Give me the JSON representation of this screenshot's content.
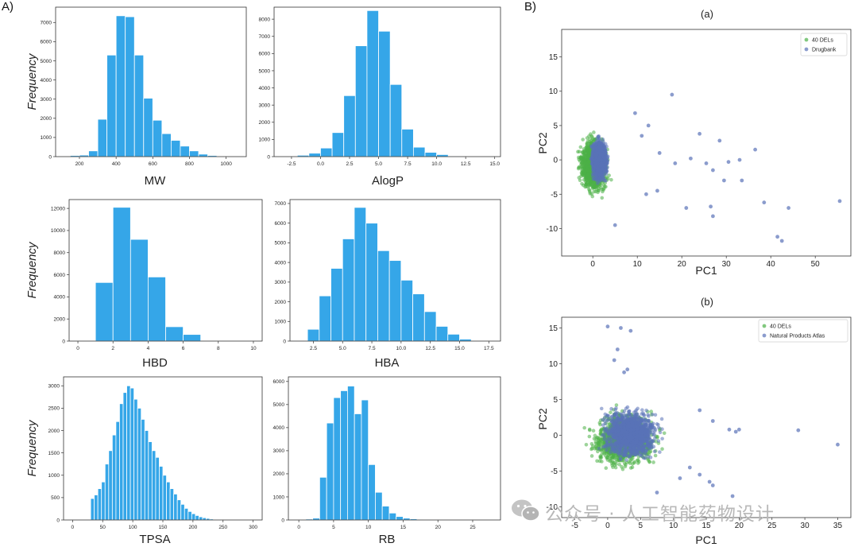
{
  "labels": {
    "panel_a": "A)",
    "panel_b": "B)"
  },
  "watermark": {
    "text": "公众号 · 人工智能药物设计"
  },
  "colors": {
    "bar": "#35a6e8",
    "bar_edge": "#ffffff",
    "frame": "#333333",
    "del_green": "#4cb047",
    "db_blue": "#5a72b8"
  },
  "chart_data": [
    {
      "type": "bar",
      "panel": "A",
      "ylabel": "Frequency",
      "xlabel": "MW",
      "xlim": [
        70,
        1110
      ],
      "ylim": [
        0,
        7800
      ],
      "xticks": [
        200,
        400,
        600,
        800,
        1000
      ],
      "yticks": [
        0,
        1000,
        2000,
        3000,
        4000,
        5000,
        6000,
        7000
      ],
      "bin_edges": [
        100,
        150,
        200,
        250,
        300,
        350,
        400,
        450,
        500,
        550,
        600,
        650,
        700,
        750,
        800,
        850,
        900,
        950,
        1000,
        1050
      ],
      "values": [
        30,
        60,
        80,
        300,
        1950,
        5300,
        7350,
        7300,
        5300,
        3050,
        1900,
        1200,
        850,
        550,
        300,
        130,
        60,
        30,
        15
      ]
    },
    {
      "type": "bar",
      "panel": "A",
      "ylabel": "",
      "xlabel": "AlogP",
      "xlim": [
        -4,
        15.5
      ],
      "ylim": [
        0,
        8700
      ],
      "xticks": [
        -2.5,
        0.0,
        2.5,
        5.0,
        7.5,
        10.0,
        12.5,
        15.0
      ],
      "yticks": [
        0,
        1000,
        2000,
        3000,
        4000,
        5000,
        6000,
        7000,
        8000
      ],
      "bin_edges": [
        -3,
        -2,
        -1,
        0,
        1,
        2,
        3,
        4,
        5,
        6,
        7,
        8,
        9,
        10,
        11,
        12
      ],
      "values": [
        20,
        80,
        200,
        500,
        1400,
        3550,
        6450,
        8500,
        7300,
        4200,
        1600,
        550,
        250,
        120,
        40
      ]
    },
    {
      "type": "bar",
      "panel": "A",
      "ylabel": "Frequency",
      "xlabel": "HBD",
      "xlim": [
        -0.5,
        10.5
      ],
      "ylim": [
        0,
        12800
      ],
      "xticks": [
        0,
        2,
        4,
        6,
        8,
        10
      ],
      "yticks": [
        0,
        2000,
        4000,
        6000,
        8000,
        10000,
        12000
      ],
      "bin_edges": [
        1,
        2,
        3,
        4,
        5,
        6,
        7
      ],
      "values": [
        5300,
        12100,
        9200,
        5800,
        1300,
        600
      ]
    },
    {
      "type": "bar",
      "panel": "A",
      "ylabel": "",
      "xlabel": "HBA",
      "xlim": [
        0.5,
        18.5
      ],
      "ylim": [
        0,
        7200
      ],
      "xticks": [
        2.5,
        5.0,
        7.5,
        10.0,
        12.5,
        15.0,
        17.5
      ],
      "yticks": [
        0,
        1000,
        2000,
        3000,
        4000,
        5000,
        6000,
        7000
      ],
      "bin_edges": [
        2,
        3,
        4,
        5,
        6,
        7,
        8,
        9,
        10,
        11,
        12,
        13,
        14,
        15,
        16
      ],
      "values": [
        600,
        2300,
        3700,
        5200,
        6800,
        6000,
        4600,
        4100,
        3100,
        2400,
        1500,
        750,
        350,
        100
      ]
    },
    {
      "type": "bar",
      "panel": "A",
      "ylabel": "Frequency",
      "xlabel": "TPSA",
      "xlim": [
        -15,
        315
      ],
      "ylim": [
        0,
        3200
      ],
      "xticks": [
        0,
        50,
        100,
        150,
        200,
        250,
        300
      ],
      "yticks": [
        0,
        500,
        1000,
        1500,
        2000,
        2500,
        3000
      ],
      "bin_edges": [
        30,
        36,
        42,
        48,
        54,
        60,
        66,
        72,
        78,
        84,
        90,
        96,
        102,
        108,
        114,
        120,
        126,
        132,
        138,
        144,
        150,
        156,
        162,
        168,
        174,
        180,
        186,
        192,
        198,
        204,
        210,
        216,
        222,
        228,
        234,
        240,
        246,
        252
      ],
      "values": [
        480,
        560,
        700,
        850,
        1250,
        1550,
        1900,
        2200,
        2600,
        2850,
        3000,
        2950,
        2700,
        2500,
        2250,
        2000,
        1750,
        1550,
        1400,
        1200,
        1000,
        850,
        700,
        580,
        450,
        350,
        260,
        190,
        140,
        100,
        70,
        50,
        35,
        22,
        15,
        10,
        5
      ]
    },
    {
      "type": "bar",
      "panel": "A",
      "ylabel": "",
      "xlabel": "RB",
      "xlim": [
        -1.5,
        29
      ],
      "ylim": [
        0,
        6200
      ],
      "xticks": [
        0,
        5,
        10,
        15,
        20,
        25
      ],
      "yticks": [
        0,
        1000,
        2000,
        3000,
        4000,
        5000,
        6000
      ],
      "bin_edges": [
        1,
        2,
        3,
        4,
        5,
        6,
        7,
        8,
        9,
        10,
        11,
        12,
        13,
        14,
        15,
        16,
        17,
        18,
        19,
        20,
        21,
        22,
        23,
        24,
        25
      ],
      "values": [
        40,
        80,
        1850,
        4200,
        5300,
        5600,
        5800,
        4600,
        5200,
        2400,
        1200,
        600,
        300,
        150,
        80,
        50,
        30,
        20,
        10,
        5,
        3,
        2,
        1,
        1
      ]
    },
    {
      "type": "scatter",
      "panel": "B",
      "title": "(a)",
      "xlabel": "PC1",
      "ylabel": "PC2",
      "xlim": [
        -7,
        58
      ],
      "ylim": [
        -14,
        19
      ],
      "xticks": [
        0,
        10,
        20,
        30,
        40,
        50
      ],
      "yticks": [
        -10,
        -5,
        0,
        5,
        10,
        15
      ],
      "series": [
        {
          "name": "40 DELs",
          "color": "#4cb047",
          "cloud": {
            "center": [
              0.2,
              -0.8
            ],
            "rx": 4.6,
            "ry": 5.5
          }
        },
        {
          "name": "Drugbank",
          "color": "#5a72b8",
          "cloud": {
            "center": [
              1.5,
              0.0
            ],
            "rx": 2.6,
            "ry": 4.6
          },
          "points": [
            [
              17.8,
              9.5
            ],
            [
              24.0,
              3.8
            ],
            [
              28.5,
              2.8
            ],
            [
              36.5,
              1.5
            ],
            [
              33.0,
              0.0
            ],
            [
              22.0,
              0.2
            ],
            [
              25.5,
              -0.5
            ],
            [
              27.0,
              -1.5
            ],
            [
              29.5,
              -3.0
            ],
            [
              33.5,
              -3.0
            ],
            [
              21.0,
              -7.0
            ],
            [
              26.5,
              -6.8
            ],
            [
              27.0,
              -8.2
            ],
            [
              38.5,
              -6.2
            ],
            [
              44.0,
              -7.0
            ],
            [
              55.5,
              -6.0
            ],
            [
              41.5,
              -11.2
            ],
            [
              42.5,
              -11.8
            ],
            [
              5.0,
              -9.5
            ],
            [
              12.0,
              -5.0
            ],
            [
              14.5,
              -4.5
            ],
            [
              11.0,
              3.5
            ],
            [
              12.5,
              5.0
            ],
            [
              9.5,
              6.8
            ],
            [
              18.5,
              -0.5
            ],
            [
              15.0,
              1.0
            ],
            [
              30.5,
              -0.3
            ]
          ]
        }
      ]
    },
    {
      "type": "scatter",
      "panel": "B",
      "title": "(b)",
      "xlabel": "PC1",
      "ylabel": "PC2",
      "xlim": [
        -7,
        37
      ],
      "ylim": [
        -11.5,
        16.5
      ],
      "xticks": [
        -5,
        0,
        5,
        10,
        15,
        20,
        25,
        30,
        35
      ],
      "yticks": [
        -10,
        -5,
        0,
        5,
        10,
        15
      ],
      "series": [
        {
          "name": "40 DELs",
          "color": "#4cb047",
          "cloud": {
            "center": [
              2.5,
              -0.5
            ],
            "rx": 7.0,
            "ry": 5.5
          }
        },
        {
          "name": "Natural Products Atlas",
          "color": "#5a72b8",
          "cloud": {
            "center": [
              3.5,
              0.3
            ],
            "rx": 6.5,
            "ry": 5.0
          },
          "points": [
            [
              0.0,
              15.2
            ],
            [
              2.0,
              15.0
            ],
            [
              3.5,
              14.6
            ],
            [
              1.5,
              12.0
            ],
            [
              1.0,
              10.5
            ],
            [
              3.0,
              9.2
            ],
            [
              2.5,
              8.8
            ],
            [
              18.5,
              0.8
            ],
            [
              19.5,
              0.5
            ],
            [
              20.0,
              0.8
            ],
            [
              29.0,
              0.7
            ],
            [
              35.0,
              -1.3
            ],
            [
              14.0,
              -5.5
            ],
            [
              15.5,
              -6.5
            ],
            [
              16.0,
              -7.0
            ],
            [
              19.0,
              -8.5
            ],
            [
              11.0,
              -6.0
            ],
            [
              7.5,
              -8.0
            ],
            [
              14.0,
              3.5
            ],
            [
              16.0,
              2.0
            ],
            [
              12.5,
              -4.5
            ]
          ]
        }
      ]
    }
  ]
}
